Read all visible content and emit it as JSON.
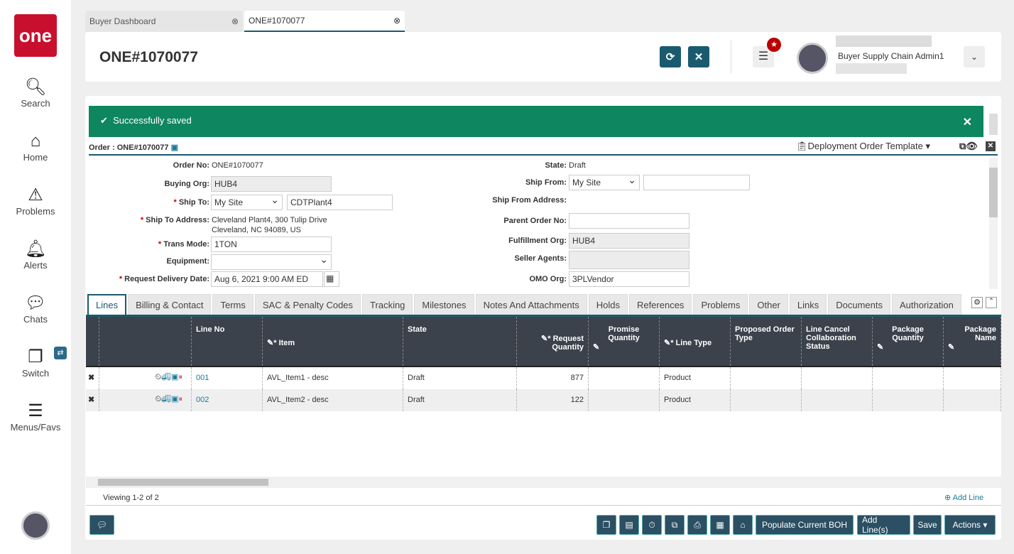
{
  "sidebar": {
    "logo": "one",
    "items": [
      {
        "label": "Search",
        "icon": "search-icon"
      },
      {
        "label": "Home",
        "icon": "home-icon"
      },
      {
        "label": "Problems",
        "icon": "warning-icon"
      },
      {
        "label": "Alerts",
        "icon": "bell-icon"
      },
      {
        "label": "Chats",
        "icon": "chat-icon"
      },
      {
        "label": "Switch",
        "icon": "switch-icon"
      },
      {
        "label": "Menus/Favs",
        "icon": "menu-icon"
      }
    ]
  },
  "tabs": [
    {
      "label": "Buyer Dashboard"
    },
    {
      "label": "ONE#1070077"
    }
  ],
  "header": {
    "title": "ONE#1070077",
    "user_role": "Buyer Supply Chain Admin1"
  },
  "banner": {
    "text": "Successfully saved",
    "color": "#0e8660"
  },
  "order": {
    "label": "Order : ONE#1070077",
    "template": "Deployment Order Template"
  },
  "form": {
    "order_no": {
      "label": "Order No:",
      "value": "ONE#1070077"
    },
    "buying_org": {
      "label": "Buying Org:",
      "value": "HUB4"
    },
    "ship_to": {
      "label": "Ship To:",
      "select": "My Site",
      "value": "CDTPlant4"
    },
    "ship_to_address": {
      "label": "Ship To Address:",
      "line1": "Cleveland Plant4, 300 Tulip Drive",
      "line2": "Cleveland, NC 94089, US"
    },
    "trans_mode": {
      "label": "Trans Mode:",
      "value": "1TON"
    },
    "equipment": {
      "label": "Equipment:",
      "value": ""
    },
    "request_delivery_date": {
      "label": "Request Delivery Date:",
      "value": "Aug 6, 2021 9:00 AM ED"
    },
    "state": {
      "label": "State:",
      "value": "Draft"
    },
    "ship_from": {
      "label": "Ship From:",
      "select": "My Site",
      "value": ""
    },
    "ship_from_address": {
      "label": "Ship From Address:"
    },
    "parent_order_no": {
      "label": "Parent Order No:",
      "value": ""
    },
    "fulfillment_org": {
      "label": "Fulfillment Org:",
      "value": "HUB4"
    },
    "seller_agents": {
      "label": "Seller Agents:",
      "value": ""
    },
    "omo_org": {
      "label": "OMO Org:",
      "value": "3PLVendor"
    }
  },
  "panel_tabs": [
    "Lines",
    "Billing & Contact",
    "Terms",
    "SAC & Penalty Codes",
    "Tracking",
    "Milestones",
    "Notes And Attachments",
    "Holds",
    "References",
    "Problems",
    "Other",
    "Links",
    "Documents",
    "Authorization"
  ],
  "table": {
    "columns": [
      "Line No",
      "Item",
      "State",
      "Request Quantity",
      "Promise Quantity",
      "Line Type",
      "Proposed Order Type",
      "Line Cancel Collaboration Status",
      "Package Quantity",
      "Package Name"
    ],
    "rows": [
      {
        "line_no": "001",
        "item": "AVL_Item1 - desc",
        "state": "Draft",
        "request_quantity": "877",
        "promise_quantity": "",
        "line_type": "Product"
      },
      {
        "line_no": "002",
        "item": "AVL_Item2 - desc",
        "state": "Draft",
        "request_quantity": "122",
        "promise_quantity": "",
        "line_type": "Product"
      }
    ],
    "viewing": "Viewing 1-2 of 2",
    "add_line": "Add Line"
  },
  "buttons": {
    "populate": "Populate Current BOH",
    "add_lines": "Add Line(s)",
    "save": "Save",
    "actions": "Actions"
  }
}
